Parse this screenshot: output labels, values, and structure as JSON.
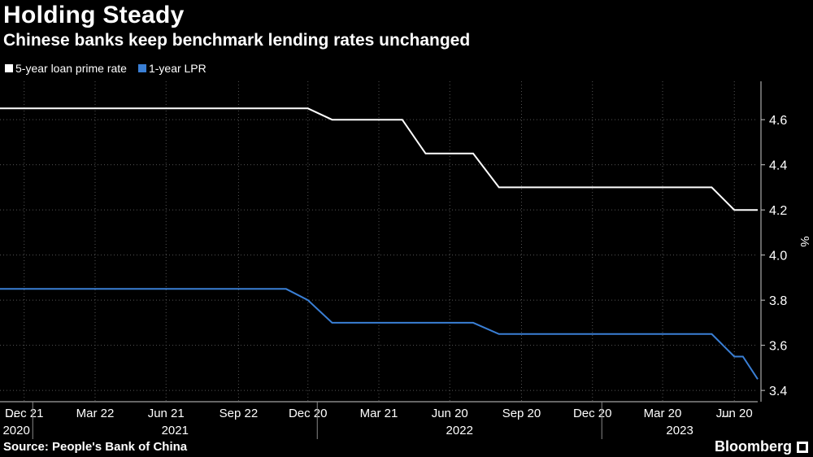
{
  "header": {
    "title": "Holding Steady",
    "subtitle": "Chinese banks keep benchmark lending rates unchanged"
  },
  "footer": {
    "source": "Source: People's Bank of China",
    "brand": "Bloomberg"
  },
  "colors": {
    "background": "#000000",
    "series_5y": "#ffffff",
    "series_1y": "#3a7fd5",
    "grid": "#555555"
  },
  "chart_data": {
    "type": "line",
    "ylabel": "%",
    "ylim": [
      3.35,
      4.77
    ],
    "yticks": [
      3.4,
      3.6,
      3.8,
      4.0,
      4.2,
      4.4,
      4.6
    ],
    "ytick_labels": [
      "3.4",
      "3.6",
      "3.8",
      "4.0",
      "4.2",
      "4.4",
      "4.6"
    ],
    "xlim": [
      "2020-11-20",
      "2023-07-20"
    ],
    "x_ticks": [
      {
        "date": "2020-11-20",
        "label": "..."
      },
      {
        "date": "2020-12-21",
        "label": "Dec 21"
      },
      {
        "date": "2021-03-22",
        "label": "Mar 22"
      },
      {
        "date": "2021-06-21",
        "label": "Jun 21"
      },
      {
        "date": "2021-09-22",
        "label": "Sep 22"
      },
      {
        "date": "2021-12-20",
        "label": "Dec 20"
      },
      {
        "date": "2022-03-21",
        "label": "Mar 21"
      },
      {
        "date": "2022-06-20",
        "label": "Jun 20"
      },
      {
        "date": "2022-09-20",
        "label": "Sep 20"
      },
      {
        "date": "2022-12-20",
        "label": "Dec 20"
      },
      {
        "date": "2023-03-20",
        "label": "Mar 20"
      },
      {
        "date": "2023-06-20",
        "label": "Jun 20"
      },
      {
        "date": "2023-07-20",
        "label": "..."
      }
    ],
    "years": [
      {
        "label": "2020",
        "start": "2020-11-20",
        "end": "2021-01-01"
      },
      {
        "label": "2021",
        "start": "2021-01-01",
        "end": "2022-01-01"
      },
      {
        "label": "2022",
        "start": "2022-01-01",
        "end": "2023-01-01"
      },
      {
        "label": "2023",
        "start": "2023-01-01",
        "end": "2023-07-20"
      }
    ],
    "legend_position": "top-left",
    "series": [
      {
        "name": "5-year loan prime rate",
        "points": [
          [
            "2020-11-20",
            4.65
          ],
          [
            "2021-12-20",
            4.65
          ],
          [
            "2022-01-20",
            4.6
          ],
          [
            "2022-04-20",
            4.6
          ],
          [
            "2022-05-20",
            4.45
          ],
          [
            "2022-07-20",
            4.45
          ],
          [
            "2022-08-22",
            4.3
          ],
          [
            "2023-05-22",
            4.3
          ],
          [
            "2023-06-20",
            4.2
          ],
          [
            "2023-07-20",
            4.2
          ]
        ]
      },
      {
        "name": "1-year LPR",
        "points": [
          [
            "2020-11-20",
            3.85
          ],
          [
            "2021-11-22",
            3.85
          ],
          [
            "2021-12-20",
            3.8
          ],
          [
            "2022-01-20",
            3.7
          ],
          [
            "2022-07-20",
            3.7
          ],
          [
            "2022-08-22",
            3.65
          ],
          [
            "2023-05-22",
            3.65
          ],
          [
            "2023-06-20",
            3.55
          ],
          [
            "2023-07-01",
            3.55
          ],
          [
            "2023-07-20",
            3.45
          ]
        ]
      }
    ]
  }
}
